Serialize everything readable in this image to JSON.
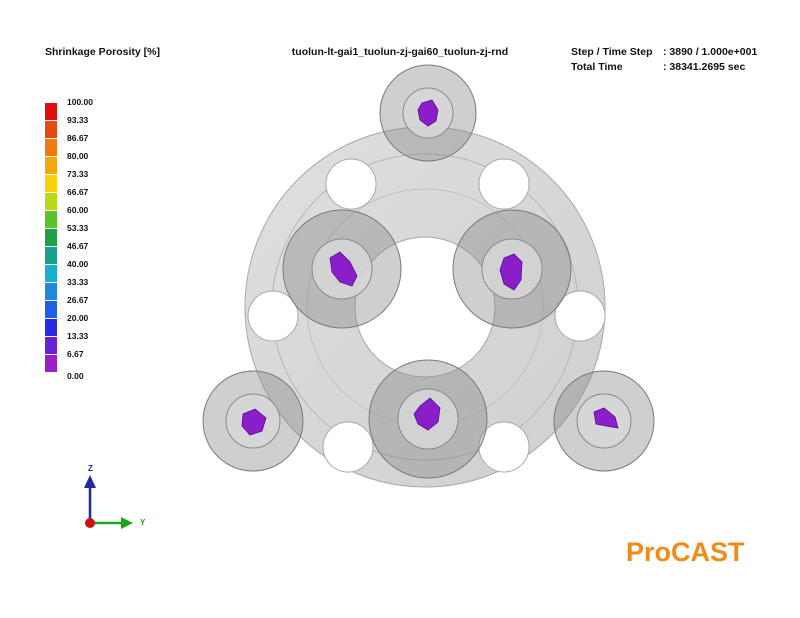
{
  "legend": {
    "title": "Shrinkage Porosity [%]",
    "labels": [
      "100.00",
      "93.33",
      "86.67",
      "80.00",
      "73.33",
      "66.67",
      "60.00",
      "53.33",
      "46.67",
      "40.00",
      "33.33",
      "26.67",
      "20.00",
      "13.33",
      "6.67",
      "0.00"
    ],
    "colors": [
      "#dd1010",
      "#e64a12",
      "#f07a10",
      "#f4a70e",
      "#f5d20a",
      "#b8d818",
      "#5cc22a",
      "#1fa14a",
      "#18a08a",
      "#1ab0c8",
      "#1e8ad8",
      "#1e5ee8",
      "#2a2ae0",
      "#6a20d8",
      "#9a1ec8"
    ]
  },
  "case_name": "tuolun-lt-gai1_tuolun-zj-gai60_tuolun-zj-rnd",
  "step": {
    "label": "Step / Time Step",
    "value": ": 3890 / 1.000e+001"
  },
  "time": {
    "label": "Total  Time",
    "value": ": 38341.2695 sec"
  },
  "axes": {
    "z_label": "Z",
    "y_label": "Y"
  },
  "brand": "ProCAST",
  "colors": {
    "brand": "#f28a18",
    "porosity": "#8a1ec8",
    "casting": "#d4d4d4",
    "axis_z": "#1a2aa8",
    "axis_y": "#1aa81a",
    "axis_origin": "#cc1111"
  }
}
